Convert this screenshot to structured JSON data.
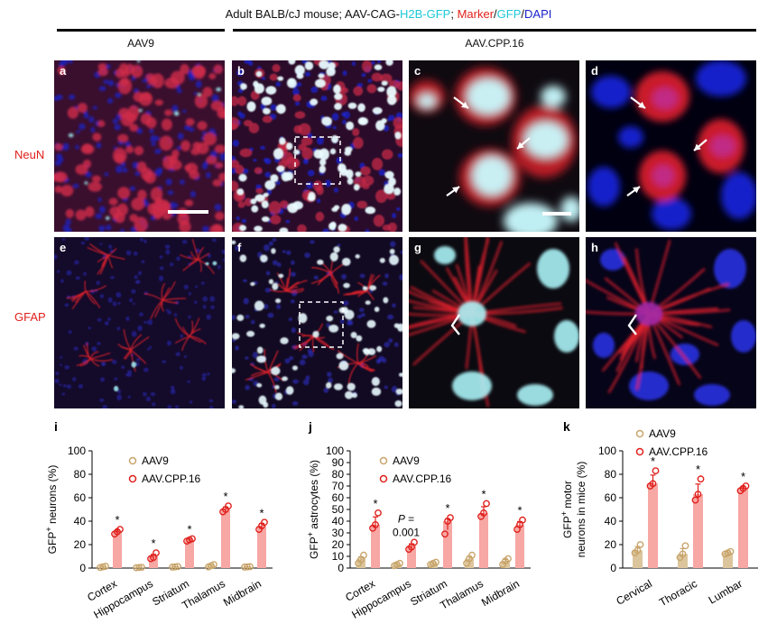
{
  "header": {
    "title_parts": [
      {
        "text": "Adult BALB/cJ mouse; AAV-CAG-",
        "color": "#111111"
      },
      {
        "text": "H2B-GFP",
        "color": "#1ec8d8"
      },
      {
        "text": "; ",
        "color": "#111111"
      },
      {
        "text": "Marker",
        "color": "#e0201c"
      },
      {
        "text": "/",
        "color": "#111111"
      },
      {
        "text": "GFP",
        "color": "#1ec8d8"
      },
      {
        "text": "/",
        "color": "#111111"
      },
      {
        "text": "DAPI",
        "color": "#1a22c8"
      }
    ]
  },
  "groups": {
    "aav9": "AAV9",
    "cpp": "AAV.CPP.16"
  },
  "rows": {
    "neun": "NeuN",
    "gfap": "GFAP"
  },
  "panels": {
    "a": "a",
    "b": "b",
    "c": "c",
    "d": "d",
    "e": "e",
    "f": "f",
    "g": "g",
    "h": "h"
  },
  "colors": {
    "aav9": "#c8a46a",
    "cpp": "#e0201c",
    "cpp_bar": "#f7a7a4",
    "aav9_bar": "#dcc59c",
    "marker": "#e0201c",
    "gfp": "#1ec8d8",
    "dapi": "#1a22c8"
  },
  "chart_data": [
    {
      "id": "i",
      "letter": "i",
      "type": "bar",
      "ylabel_sup": "+",
      "ylabel_pre": "GFP",
      "ylabel_post": " neurons (%)",
      "ylim": [
        0,
        100
      ],
      "yticks": [
        0,
        20,
        40,
        60,
        80,
        100
      ],
      "categories": [
        "Cortex",
        "Hippocampus",
        "Striatum",
        "Thalamus",
        "Midbrain"
      ],
      "series": [
        {
          "name": "AAV9",
          "values": [
            1,
            0.5,
            1,
            2,
            1
          ]
        },
        {
          "name": "AAV.CPP.16",
          "values": [
            31,
            10,
            24,
            50,
            36
          ]
        }
      ],
      "points": {
        "AAV9": [
          [
            0.5,
            1,
            1.5
          ],
          [
            0.3,
            0.5,
            0.7
          ],
          [
            0.8,
            1,
            1.3
          ],
          [
            1,
            2,
            3
          ],
          [
            0.8,
            1,
            1.2
          ]
        ],
        "AAV.CPP.16": [
          [
            29,
            31,
            33
          ],
          [
            8,
            9,
            13
          ],
          [
            23,
            24,
            25
          ],
          [
            48,
            50,
            53
          ],
          [
            33,
            36,
            39
          ]
        ]
      },
      "annotations": [
        "*",
        "*",
        "*",
        "*",
        "*"
      ]
    },
    {
      "id": "j",
      "letter": "j",
      "type": "bar",
      "ylabel_sup": "+",
      "ylabel_pre": "GFP",
      "ylabel_post": " astrocytes (%)",
      "ylim": [
        0,
        100
      ],
      "yticks": [
        0,
        10,
        20,
        30,
        40,
        50,
        60,
        70,
        80,
        90,
        100
      ],
      "categories": [
        "Cortex",
        "Hippocampus",
        "Striatum",
        "Thalamus",
        "Midbrain"
      ],
      "series": [
        {
          "name": "AAV9",
          "values": [
            8,
            3,
            4,
            8,
            6
          ]
        },
        {
          "name": "AAV.CPP.16",
          "values": [
            37,
            19,
            40,
            47,
            37
          ]
        }
      ],
      "points": {
        "AAV9": [
          [
            4,
            7,
            11
          ],
          [
            2,
            3,
            4
          ],
          [
            3,
            4,
            5
          ],
          [
            4,
            8,
            11
          ],
          [
            3,
            6,
            8
          ]
        ],
        "AAV.CPP.16": [
          [
            34,
            37,
            47
          ],
          [
            16,
            18,
            22
          ],
          [
            29,
            40,
            43
          ],
          [
            44,
            47,
            55
          ],
          [
            33,
            37,
            41
          ]
        ]
      },
      "annotations": [
        "*",
        "P =\n0.001",
        "*",
        "*",
        "*"
      ],
      "p_label_line1": "P =",
      "p_label_line2": "0.001"
    },
    {
      "id": "k",
      "letter": "k",
      "type": "bar",
      "ylabel_line1_pre": "GFP",
      "ylabel_line1_sup": "+",
      "ylabel_line1_post": " motor",
      "ylabel_line2": "neurons in mice (%)",
      "ylim": [
        0,
        100
      ],
      "yticks": [
        0,
        20,
        40,
        60,
        80,
        100
      ],
      "categories": [
        "Cervical",
        "Thoracic",
        "Lumbar"
      ],
      "series": [
        {
          "name": "AAV9",
          "values": [
            15,
            12,
            13
          ]
        },
        {
          "name": "AAV.CPP.16",
          "values": [
            72,
            63,
            68
          ]
        }
      ],
      "points": {
        "AAV9": [
          [
            13,
            15,
            20
          ],
          [
            9,
            12,
            19
          ],
          [
            12,
            13,
            14
          ]
        ],
        "AAV.CPP.16": [
          [
            70,
            72,
            83
          ],
          [
            58,
            63,
            76
          ],
          [
            66,
            68,
            70
          ]
        ]
      },
      "annotations": [
        "*",
        "*",
        "*"
      ]
    }
  ]
}
